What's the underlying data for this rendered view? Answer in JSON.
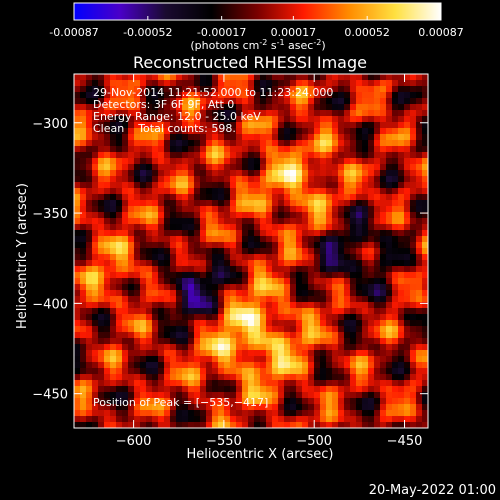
{
  "chart_data": {
    "type": "heatmap",
    "title": "Reconstructed RHESSI Image",
    "xlabel": "Heliocentric X (arcsec)",
    "ylabel": "Heliocentric Y (arcsec)",
    "colorbar": {
      "ticks": [
        "-0.00087",
        "-0.00052",
        "-0.00017",
        "0.00017",
        "0.00052",
        "0.00087"
      ],
      "range": [
        -0.00087,
        0.00087
      ],
      "label_parts": [
        "(photons cm",
        "-2",
        " s",
        "-1",
        " asec",
        "-2",
        ")"
      ],
      "colormap": [
        "#0000ff",
        "#4a00c8",
        "#1a0a30",
        "#000000",
        "#7a0000",
        "#ff1a00",
        "#ff8c00",
        "#ffe040",
        "#ffffff"
      ]
    },
    "xlim": [
      -633,
      -437
    ],
    "ylim": [
      -469,
      -273
    ],
    "x_ticks": [
      -600,
      -550,
      -500,
      -450
    ],
    "y_ticks": [
      -450,
      -400,
      -350,
      -300
    ],
    "x_tick_labels": [
      "−600",
      "−550",
      "−500",
      "−450"
    ],
    "y_tick_labels": [
      "−450",
      "−400",
      "−350",
      "−300"
    ],
    "annotations": [
      "29-Nov-2014 11:21:52.000 to 11:23:24.000",
      "Detectors: 3F 6F 9F, Att 0",
      "Energy Range: 12.0 - 25.0 keV",
      "Clean    Total counts: 598."
    ],
    "peak_text": "Position of Peak = [−535,−417]",
    "peak": [
      -535,
      -417
    ],
    "grid": false
  },
  "footer": {
    "timestamp": "20-May-2022 01:00"
  }
}
